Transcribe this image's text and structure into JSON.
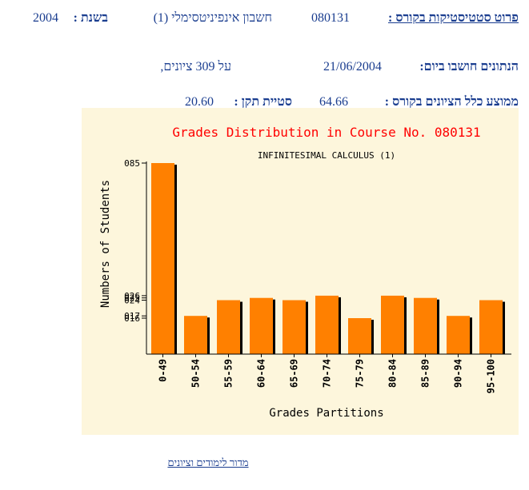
{
  "header": {
    "course_label": "פרוט סטטיסטיקות בקורס :",
    "course_number": "080131",
    "course_name": "חשבון אינפיניטסימלי (1)",
    "year_label": "בשנת :",
    "year": "2004",
    "computed_label": "הנתונים חושבו ביום:",
    "computed_date": "21/06/2004",
    "count_text": "על 309 ציונים,",
    "mean_label": "ממוצע כלל הציונים בקורס :",
    "mean_value": "64.66",
    "std_label": "סטיית תקן :",
    "std_value": "20.60"
  },
  "footer": {
    "link_label": "מדור לימודים וציונים"
  },
  "colors": {
    "bar": "#ff8000",
    "bar_shadow": "#000000",
    "title": "#ff0000",
    "panel": "#fdf6dc",
    "text": "#1a3d8f"
  },
  "chart_data": {
    "type": "bar",
    "title": "Grades Distribution in Course No. 080131",
    "subtitle": "INFINITESIMAL CALCULUS (1)",
    "xlabel": "Grades Partitions",
    "ylabel": "Numbers of Students",
    "categories": [
      "0-49",
      "50-54",
      "55-59",
      "60-64",
      "65-69",
      "70-74",
      "75-79",
      "80-84",
      "85-89",
      "90-94",
      "95-100"
    ],
    "values": [
      85,
      17,
      24,
      25,
      24,
      26,
      16,
      26,
      25,
      17,
      24
    ],
    "ytick_labels": [
      "085",
      "026",
      "025",
      "024",
      "017",
      "016"
    ],
    "ylim": [
      0,
      85
    ],
    "grid": false,
    "legend": "none"
  }
}
